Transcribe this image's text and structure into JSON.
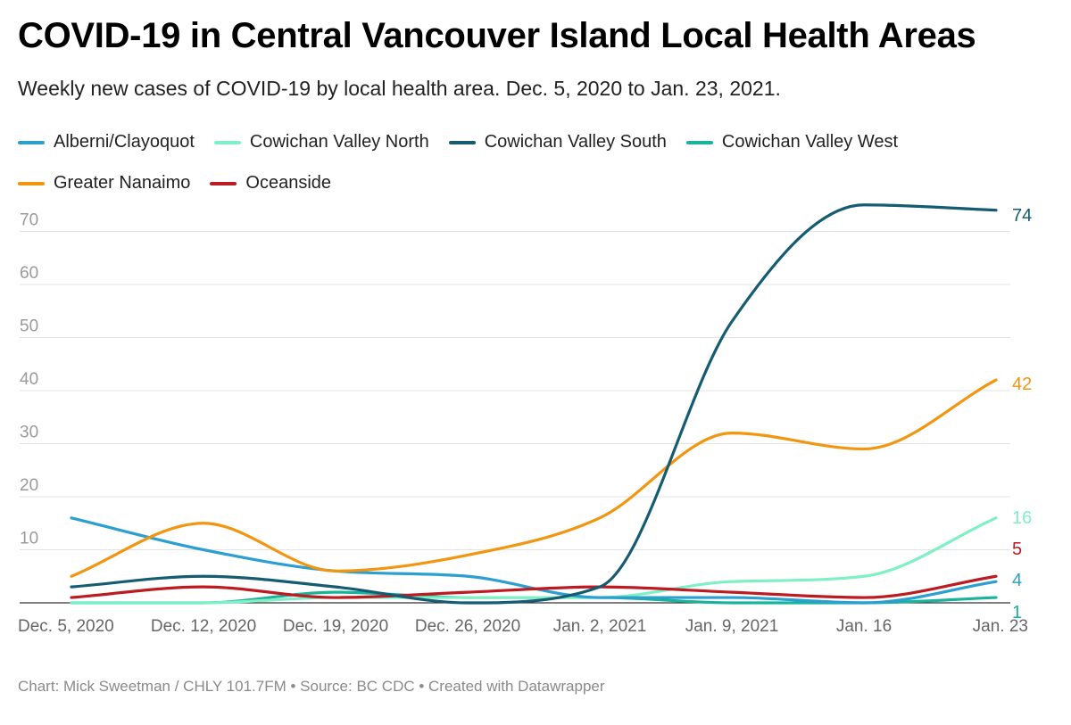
{
  "chart_data": {
    "type": "line",
    "title": "COVID-19 in Central Vancouver Island Local Health Areas",
    "subtitle": "Weekly new cases of COVID-19 by local health area. Dec. 5, 2020 to Jan. 23, 2021.",
    "categories": [
      "Dec. 5, 2020",
      "Dec. 12, 2020",
      "Dec. 19, 2020",
      "Dec. 26, 2020",
      "Jan. 2, 2021",
      "Jan. 9, 2021",
      "Jan. 16",
      "Jan. 23"
    ],
    "yticks": [
      "0",
      "10",
      "20",
      "30",
      "40",
      "50",
      "60",
      "70"
    ],
    "ylim": [
      0,
      75
    ],
    "grid": true,
    "legend_position": "top",
    "series": [
      {
        "name": "Alberni/Clayoquot",
        "color": "#2a9fd0",
        "values": [
          16,
          10,
          6,
          5,
          1,
          1,
          0,
          4
        ],
        "end_label": "4"
      },
      {
        "name": "Cowichan Valley North",
        "color": "#7ff0c6",
        "values": [
          0,
          0,
          1,
          1,
          1,
          4,
          5,
          16
        ],
        "end_label": "16"
      },
      {
        "name": "Cowichan Valley South",
        "color": "#155b72",
        "values": [
          3,
          5,
          3,
          0,
          3,
          53,
          75,
          74
        ],
        "end_label": "74"
      },
      {
        "name": "Cowichan Valley West",
        "color": "#18b39a",
        "values": [
          0,
          0,
          2,
          1,
          1,
          0,
          0,
          1
        ],
        "end_label": "1"
      },
      {
        "name": "Greater Nanaimo",
        "color": "#f2950f",
        "values": [
          5,
          15,
          6,
          9,
          16,
          32,
          29,
          42
        ],
        "end_label": "42"
      },
      {
        "name": "Oceanside",
        "color": "#bd1b22",
        "values": [
          1,
          3,
          1,
          2,
          3,
          2,
          1,
          5
        ],
        "end_label": "5"
      }
    ]
  },
  "footer": "Chart: Mick Sweetman / CHLY 101.7FM • Source: BC CDC • Created with Datawrapper"
}
